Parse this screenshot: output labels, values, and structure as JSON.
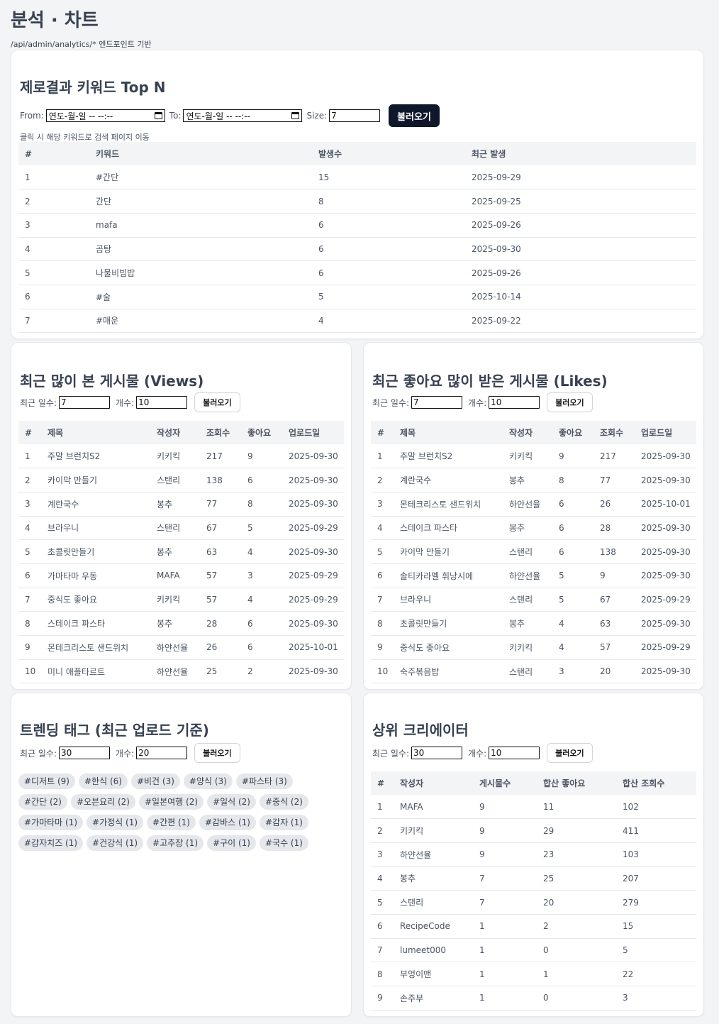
{
  "page": {
    "title": "분석 · 차트",
    "subtitle": "/api/admin/analytics/* 엔드포인트 기반"
  },
  "zero": {
    "title": "제로결과 키워드 Top N",
    "from_label": "From:",
    "to_label": "To:",
    "size_label": "Size:",
    "date_placeholder": "연도-월-일 -- --:--",
    "size_value": "7",
    "load_label": "불러오기",
    "hint": "클릭 시 해당 키워드로 검색 페이지 이동",
    "headers": [
      "#",
      "키워드",
      "발생수",
      "최근 발생"
    ],
    "rows": [
      [
        "1",
        "#간단",
        "15",
        "2025-09-29"
      ],
      [
        "2",
        "간단",
        "8",
        "2025-09-25"
      ],
      [
        "3",
        "mafa",
        "6",
        "2025-09-26"
      ],
      [
        "4",
        "곰탕",
        "6",
        "2025-09-30"
      ],
      [
        "5",
        "나물비빔밥",
        "6",
        "2025-09-26"
      ],
      [
        "6",
        "#술",
        "5",
        "2025-10-14"
      ],
      [
        "7",
        "#매운",
        "4",
        "2025-09-22"
      ]
    ]
  },
  "views": {
    "title": "최근 많이 본 게시물 (Views)",
    "days_label": "최근 일수:",
    "days_value": "7",
    "count_label": "개수:",
    "count_value": "10",
    "load_label": "불러오기",
    "headers": [
      "#",
      "제목",
      "작성자",
      "조회수",
      "좋아요",
      "업로드일"
    ],
    "rows": [
      [
        "1",
        "주말 브런치S2",
        "키키킥",
        "217",
        "9",
        "2025-09-30"
      ],
      [
        "2",
        "카이막 만들기",
        "스탠리",
        "138",
        "6",
        "2025-09-30"
      ],
      [
        "3",
        "계란국수",
        "봉추",
        "77",
        "8",
        "2025-09-30"
      ],
      [
        "4",
        "브라우니",
        "스탠리",
        "67",
        "5",
        "2025-09-29"
      ],
      [
        "5",
        "초콜릿만들기",
        "봉추",
        "63",
        "4",
        "2025-09-30"
      ],
      [
        "6",
        "가마타마 우동",
        "MAFA",
        "57",
        "3",
        "2025-09-29"
      ],
      [
        "7",
        "중식도 좋아요",
        "키키킥",
        "57",
        "4",
        "2025-09-29"
      ],
      [
        "8",
        "스테이크 파스타",
        "봉추",
        "28",
        "6",
        "2025-09-30"
      ],
      [
        "9",
        "몬테크리스토 샌드위치",
        "하얀선율",
        "26",
        "6",
        "2025-10-01"
      ],
      [
        "10",
        "미니 애플타르트",
        "하얀선율",
        "25",
        "2",
        "2025-09-30"
      ]
    ]
  },
  "likes": {
    "title": "최근 좋아요 많이 받은 게시물 (Likes)",
    "days_label": "최근 일수:",
    "days_value": "7",
    "count_label": "개수:",
    "count_value": "10",
    "load_label": "불러오기",
    "headers": [
      "#",
      "제목",
      "작성자",
      "좋아요",
      "조회수",
      "업로드일"
    ],
    "rows": [
      [
        "1",
        "주말 브런치S2",
        "키키킥",
        "9",
        "217",
        "2025-09-30"
      ],
      [
        "2",
        "계란국수",
        "봉추",
        "8",
        "77",
        "2025-09-30"
      ],
      [
        "3",
        "몬테크리스토 샌드위치",
        "하얀선율",
        "6",
        "26",
        "2025-10-01"
      ],
      [
        "4",
        "스테이크 파스타",
        "봉추",
        "6",
        "28",
        "2025-09-30"
      ],
      [
        "5",
        "카이막 만들기",
        "스탠리",
        "6",
        "138",
        "2025-09-30"
      ],
      [
        "6",
        "솔티카라멜 휘낭시에",
        "하얀선율",
        "5",
        "9",
        "2025-09-30"
      ],
      [
        "7",
        "브라우니",
        "스탠리",
        "5",
        "67",
        "2025-09-29"
      ],
      [
        "8",
        "초콜릿만들기",
        "봉추",
        "4",
        "63",
        "2025-09-30"
      ],
      [
        "9",
        "중식도 좋아요",
        "키키킥",
        "4",
        "57",
        "2025-09-29"
      ],
      [
        "10",
        "숙주볶음밥",
        "스탠리",
        "3",
        "20",
        "2025-09-30"
      ]
    ]
  },
  "tags": {
    "title": "트렌딩 태그 (최근 업로드 기준)",
    "days_label": "최근 일수:",
    "days_value": "30",
    "count_label": "개수:",
    "count_value": "20",
    "load_label": "불러오기",
    "items": [
      "#디저트 (9)",
      "#한식 (6)",
      "#비건 (3)",
      "#양식 (3)",
      "#파스타 (3)",
      "#간단 (2)",
      "#오븐요리 (2)",
      "#일본여행 (2)",
      "#일식 (2)",
      "#중식 (2)",
      "#가마타마 (1)",
      "#가정식 (1)",
      "#간편 (1)",
      "#감바스 (1)",
      "#감자 (1)",
      "#감자치즈 (1)",
      "#건강식 (1)",
      "#고추장 (1)",
      "#구이 (1)",
      "#국수 (1)"
    ]
  },
  "creators": {
    "title": "상위 크리에이터",
    "days_label": "최근 일수:",
    "days_value": "30",
    "count_label": "개수:",
    "count_value": "10",
    "load_label": "불러오기",
    "headers": [
      "#",
      "작성자",
      "게시물수",
      "합산 좋아요",
      "합산 조회수"
    ],
    "rows": [
      [
        "1",
        "MAFA",
        "9",
        "11",
        "102"
      ],
      [
        "2",
        "키키킥",
        "9",
        "29",
        "411"
      ],
      [
        "3",
        "하얀선율",
        "9",
        "23",
        "103"
      ],
      [
        "4",
        "봉추",
        "7",
        "25",
        "207"
      ],
      [
        "5",
        "스탠리",
        "7",
        "20",
        "279"
      ],
      [
        "6",
        "RecipeCode",
        "1",
        "2",
        "15"
      ],
      [
        "7",
        "lumeet000",
        "1",
        "0",
        "5"
      ],
      [
        "8",
        "부엉이맨",
        "1",
        "1",
        "22"
      ],
      [
        "9",
        "손주부",
        "1",
        "0",
        "3"
      ]
    ]
  }
}
